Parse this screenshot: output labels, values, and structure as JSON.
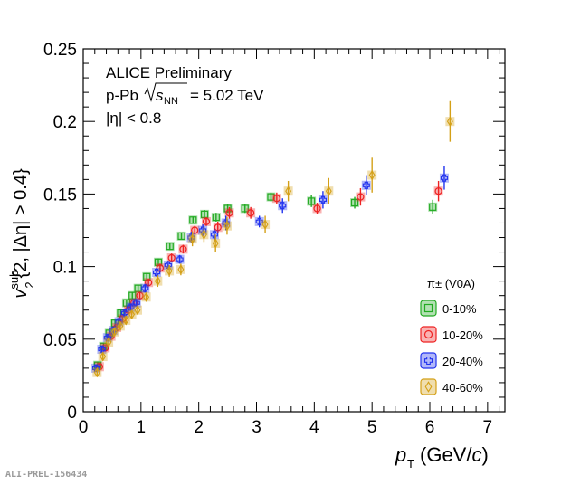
{
  "chart_data": {
    "type": "scatter",
    "title": "",
    "xlabel": "p_T (GeV/c)",
    "ylabel": "v2_sub{2, |Δη| > 0.4}",
    "xlim": [
      0,
      7.3
    ],
    "ylim": [
      0,
      0.25
    ],
    "x_ticks": [
      "0",
      "1",
      "2",
      "3",
      "4",
      "5",
      "6",
      "7"
    ],
    "y_ticks": [
      "0",
      "0.05",
      "0.1",
      "0.15",
      "0.2",
      "0.25"
    ],
    "annotations": [
      "ALICE Preliminary",
      "p-Pb",
      "= 5.02 TeV",
      "|η| < 0.8"
    ],
    "legend_title": "π± (V0A)",
    "legend_position": "bottom-right",
    "watermark": "ALI-PREL-156434",
    "series": [
      {
        "name": "0-10%",
        "color": "#22aa22",
        "marker": "square",
        "x": [
          0.25,
          0.35,
          0.45,
          0.55,
          0.65,
          0.75,
          0.85,
          0.95,
          1.1,
          1.3,
          1.5,
          1.7,
          1.9,
          2.1,
          2.3,
          2.5,
          2.8,
          3.25,
          3.95,
          4.7,
          6.05
        ],
        "y": [
          0.032,
          0.045,
          0.054,
          0.061,
          0.068,
          0.075,
          0.08,
          0.085,
          0.093,
          0.103,
          0.114,
          0.121,
          0.132,
          0.136,
          0.134,
          0.14,
          0.14,
          0.148,
          0.145,
          0.144,
          0.141
        ],
        "err": [
          0.002,
          0.002,
          0.002,
          0.002,
          0.002,
          0.002,
          0.002,
          0.002,
          0.002,
          0.002,
          0.002,
          0.002,
          0.002,
          0.003,
          0.003,
          0.003,
          0.003,
          0.003,
          0.004,
          0.004,
          0.005
        ]
      },
      {
        "name": "10-20%",
        "color": "#ee2222",
        "marker": "circle",
        "x": [
          0.28,
          0.38,
          0.48,
          0.58,
          0.68,
          0.78,
          0.88,
          0.98,
          1.13,
          1.33,
          1.53,
          1.73,
          1.93,
          2.13,
          2.33,
          2.53,
          2.9,
          3.35,
          4.05,
          4.8,
          6.15
        ],
        "y": [
          0.031,
          0.044,
          0.052,
          0.058,
          0.064,
          0.07,
          0.075,
          0.08,
          0.089,
          0.099,
          0.106,
          0.112,
          0.125,
          0.131,
          0.127,
          0.137,
          0.137,
          0.147,
          0.14,
          0.148,
          0.152
        ],
        "err": [
          0.002,
          0.002,
          0.002,
          0.002,
          0.002,
          0.002,
          0.002,
          0.002,
          0.002,
          0.003,
          0.003,
          0.003,
          0.003,
          0.003,
          0.004,
          0.004,
          0.004,
          0.004,
          0.004,
          0.006,
          0.007
        ]
      },
      {
        "name": "20-40%",
        "color": "#2233ee",
        "marker": "cross",
        "x": [
          0.22,
          0.32,
          0.42,
          0.52,
          0.62,
          0.72,
          0.82,
          0.92,
          1.07,
          1.27,
          1.47,
          1.67,
          1.87,
          2.07,
          2.27,
          2.47,
          3.05,
          3.45,
          4.15,
          4.9,
          6.25
        ],
        "y": [
          0.03,
          0.043,
          0.051,
          0.056,
          0.062,
          0.068,
          0.072,
          0.075,
          0.085,
          0.096,
          0.101,
          0.105,
          0.12,
          0.125,
          0.122,
          0.13,
          0.131,
          0.142,
          0.146,
          0.156,
          0.161
        ],
        "err": [
          0.002,
          0.002,
          0.002,
          0.002,
          0.002,
          0.002,
          0.002,
          0.002,
          0.003,
          0.003,
          0.003,
          0.003,
          0.004,
          0.004,
          0.004,
          0.005,
          0.004,
          0.005,
          0.006,
          0.007,
          0.008
        ]
      },
      {
        "name": "40-60%",
        "color": "#d4a017",
        "marker": "diamond",
        "x": [
          0.24,
          0.34,
          0.44,
          0.54,
          0.64,
          0.74,
          0.84,
          0.94,
          1.09,
          1.29,
          1.49,
          1.69,
          1.89,
          2.09,
          2.29,
          2.49,
          3.15,
          3.55,
          4.25,
          5.0,
          6.35
        ],
        "y": [
          0.027,
          0.038,
          0.048,
          0.055,
          0.059,
          0.063,
          0.067,
          0.07,
          0.079,
          0.09,
          0.097,
          0.098,
          0.119,
          0.122,
          0.116,
          0.128,
          0.129,
          0.152,
          0.152,
          0.163,
          0.2
        ],
        "err": [
          0.002,
          0.002,
          0.002,
          0.002,
          0.002,
          0.003,
          0.003,
          0.003,
          0.003,
          0.004,
          0.004,
          0.004,
          0.005,
          0.005,
          0.006,
          0.006,
          0.006,
          0.007,
          0.009,
          0.012,
          0.014
        ]
      }
    ]
  }
}
